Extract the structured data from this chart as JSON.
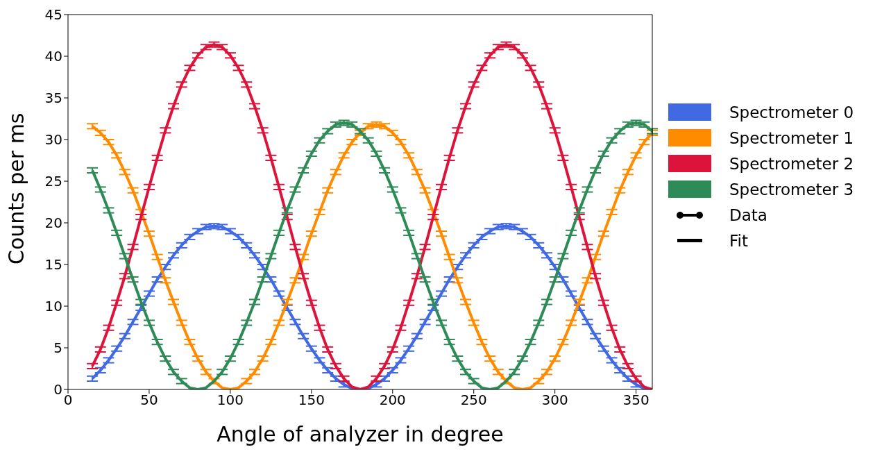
{
  "chart_data": {
    "type": "line",
    "xlabel": "Angle of analyzer in degree",
    "ylabel": "Counts per ms",
    "x": [
      15,
      20,
      25,
      30,
      35,
      40,
      45,
      50,
      55,
      60,
      65,
      70,
      75,
      80,
      85,
      90,
      95,
      100,
      105,
      110,
      115,
      120,
      125,
      130,
      135,
      140,
      145,
      150,
      155,
      160,
      165,
      170,
      175,
      180,
      185,
      190,
      195,
      200,
      205,
      210,
      215,
      220,
      225,
      230,
      235,
      240,
      245,
      250,
      255,
      260,
      265,
      270,
      275,
      280,
      285,
      290,
      295,
      300,
      305,
      310,
      315,
      320,
      325,
      330,
      335,
      340,
      345,
      350,
      355,
      360
    ],
    "series": [
      {
        "name": "Spectrometer 0",
        "color": "#4169e1",
        "values": [
          1.3,
          2.3,
          3.5,
          4.9,
          6.4,
          8.1,
          9.8,
          11.5,
          13.2,
          14.7,
          16.1,
          17.3,
          18.3,
          19.0,
          19.5,
          19.6,
          19.5,
          19.0,
          18.3,
          17.3,
          16.1,
          14.7,
          13.2,
          11.5,
          9.8,
          8.1,
          6.4,
          4.9,
          3.5,
          2.3,
          1.3,
          0.6,
          0.1,
          0,
          0.1,
          0.6,
          1.3,
          2.3,
          3.5,
          4.9,
          6.4,
          8.1,
          9.8,
          11.5,
          13.2,
          14.7,
          16.1,
          17.3,
          18.3,
          19.0,
          19.5,
          19.6,
          19.5,
          19.0,
          18.3,
          17.3,
          16.1,
          14.7,
          13.2,
          11.5,
          9.8,
          8.1,
          6.4,
          4.9,
          3.5,
          2.3,
          1.3,
          0.6,
          0.1,
          0
        ],
        "errors": [
          0.3,
          0.3,
          0.3,
          0.3,
          0.3,
          0.3,
          0.3,
          0.3,
          0.3,
          0.3,
          0.3,
          0.3,
          0.3,
          0.3,
          0.3,
          0.3,
          0.3,
          0.3,
          0.3,
          0.3,
          0.3,
          0.3,
          0.3,
          0.3,
          0.3,
          0.3,
          0.3,
          0.3,
          0.3,
          0.3,
          0.3,
          0.3,
          null,
          null,
          null,
          0.3,
          0.3,
          0.3,
          0.3,
          0.3,
          0.3,
          0.3,
          0.3,
          0.3,
          0.3,
          0.3,
          0.3,
          0.3,
          0.3,
          0.3,
          0.3,
          0.3,
          0.3,
          0.3,
          0.3,
          0.3,
          0.3,
          0.3,
          0.3,
          0.3,
          0.3,
          0.3,
          0.3,
          0.3,
          0.3,
          0.3,
          0.3,
          0.3,
          null,
          null
        ]
      },
      {
        "name": "Spectrometer 1",
        "color": "#ff8c00",
        "values": [
          31.6,
          30.8,
          29.7,
          28.1,
          26.1,
          23.9,
          21.3,
          18.7,
          15.9,
          13.1,
          10.5,
          8.0,
          5.7,
          3.7,
          2.1,
          1.0,
          0.2,
          0,
          0.2,
          1.0,
          2.1,
          3.7,
          5.7,
          8.0,
          10.5,
          13.1,
          15.9,
          18.7,
          21.3,
          23.9,
          26.1,
          28.1,
          29.7,
          30.8,
          31.6,
          31.8,
          31.6,
          30.8,
          29.7,
          28.1,
          26.1,
          23.9,
          21.3,
          18.7,
          15.9,
          13.1,
          10.5,
          8.0,
          5.7,
          3.7,
          2.1,
          1.0,
          0.2,
          0,
          0.2,
          1.0,
          2.1,
          3.7,
          5.7,
          8.0,
          10.5,
          13.1,
          15.9,
          18.7,
          21.3,
          23.9,
          26.1,
          28.1,
          29.7,
          30.8
        ],
        "errors": [
          0.3,
          0.3,
          0.3,
          0.3,
          0.3,
          0.3,
          0.3,
          0.3,
          0.3,
          0.3,
          0.3,
          0.3,
          0.3,
          0.3,
          0.3,
          0.3,
          null,
          null,
          null,
          0.3,
          0.3,
          0.3,
          0.3,
          0.3,
          0.3,
          0.3,
          0.3,
          0.3,
          0.3,
          0.3,
          0.3,
          0.3,
          0.3,
          0.3,
          0.3,
          0.3,
          0.3,
          0.3,
          0.3,
          0.3,
          0.3,
          0.3,
          0.3,
          0.3,
          0.3,
          0.3,
          0.3,
          0.3,
          0.3,
          0.3,
          0.3,
          0.3,
          null,
          null,
          null,
          0.3,
          0.3,
          0.3,
          0.3,
          0.3,
          0.3,
          0.3,
          0.3,
          0.3,
          0.3,
          0.3,
          0.3,
          0.3,
          0.3,
          0.3
        ]
      },
      {
        "name": "Spectrometer 2",
        "color": "#dc143c",
        "values": [
          2.8,
          4.8,
          7.4,
          10.4,
          13.6,
          17.1,
          20.7,
          24.3,
          27.8,
          31.1,
          34.0,
          36.6,
          38.6,
          40.1,
          41.1,
          41.4,
          41.1,
          40.1,
          38.6,
          36.6,
          34.0,
          31.1,
          27.8,
          24.3,
          20.7,
          17.1,
          13.6,
          10.4,
          7.4,
          4.8,
          2.8,
          1.3,
          0.3,
          0,
          0.3,
          1.3,
          2.8,
          4.8,
          7.4,
          10.4,
          13.6,
          17.1,
          20.7,
          24.3,
          27.8,
          31.1,
          34.0,
          36.6,
          38.6,
          40.1,
          41.1,
          41.4,
          41.1,
          40.1,
          38.6,
          36.6,
          34.0,
          31.1,
          27.8,
          24.3,
          20.7,
          17.1,
          13.6,
          10.4,
          7.4,
          4.8,
          2.8,
          1.3,
          0.3,
          0
        ],
        "errors": [
          0.3,
          0.3,
          0.3,
          0.3,
          0.3,
          0.3,
          0.3,
          0.3,
          0.3,
          0.3,
          0.3,
          0.3,
          0.3,
          0.3,
          0.3,
          0.3,
          0.3,
          0.3,
          0.3,
          0.3,
          0.3,
          0.3,
          0.3,
          0.3,
          0.3,
          0.3,
          0.3,
          0.3,
          0.3,
          0.3,
          0.3,
          0.3,
          null,
          null,
          null,
          0.3,
          0.3,
          0.3,
          0.3,
          0.3,
          0.3,
          0.3,
          0.3,
          0.3,
          0.3,
          0.3,
          0.3,
          0.3,
          0.3,
          0.3,
          0.3,
          0.3,
          0.3,
          0.3,
          0.3,
          0.3,
          0.3,
          0.3,
          0.3,
          0.3,
          0.3,
          0.3,
          0.3,
          0.3,
          0.3,
          0.3,
          0.3,
          0.3,
          null,
          null
        ]
      },
      {
        "name": "Spectrometer 3",
        "color": "#2e8b57",
        "values": [
          26.3,
          24.0,
          21.5,
          18.8,
          16.0,
          13.2,
          10.5,
          8.0,
          5.7,
          3.7,
          2.1,
          1.0,
          0.2,
          0,
          0.2,
          1.0,
          2.1,
          3.7,
          5.7,
          8.0,
          10.5,
          13.2,
          16.0,
          18.8,
          21.5,
          24.0,
          26.3,
          28.3,
          29.9,
          31.0,
          31.8,
          32.0,
          31.8,
          31.0,
          29.9,
          28.3,
          26.3,
          24.0,
          21.5,
          18.8,
          16.0,
          13.2,
          10.5,
          8.0,
          5.7,
          3.7,
          2.1,
          1.0,
          0.2,
          0,
          0.2,
          1.0,
          2.1,
          3.7,
          5.7,
          8.0,
          10.5,
          13.2,
          16.0,
          18.8,
          21.5,
          24.0,
          26.3,
          28.3,
          29.9,
          31.0,
          31.8,
          32.0,
          31.8,
          31.0
        ],
        "errors": [
          0.3,
          0.3,
          0.3,
          0.3,
          0.3,
          0.3,
          0.3,
          0.3,
          0.3,
          0.3,
          0.3,
          0.3,
          null,
          null,
          null,
          null,
          0.3,
          0.3,
          0.3,
          0.3,
          0.3,
          0.3,
          0.3,
          0.3,
          0.3,
          0.3,
          0.3,
          0.3,
          0.3,
          0.3,
          0.3,
          0.3,
          0.3,
          0.3,
          0.3,
          0.3,
          0.3,
          0.3,
          0.3,
          0.3,
          0.3,
          0.3,
          0.3,
          0.3,
          0.3,
          0.3,
          0.3,
          0.3,
          null,
          null,
          null,
          null,
          0.3,
          0.3,
          0.3,
          0.3,
          0.3,
          0.3,
          0.3,
          0.3,
          0.3,
          0.3,
          0.3,
          0.3,
          0.3,
          0.3,
          0.3,
          0.3,
          0.3,
          0.3
        ]
      }
    ],
    "annotations": [
      "Data",
      "Fit"
    ],
    "xlim": [
      0,
      360
    ],
    "xticks": [
      0,
      50,
      100,
      150,
      200,
      250,
      300,
      350
    ],
    "ylim": [
      0,
      45
    ],
    "yticks": [
      0,
      5,
      10,
      15,
      20,
      25,
      30,
      35,
      40,
      45
    ],
    "grid": false,
    "legend": "right",
    "marker": "none",
    "line_style": "solid"
  }
}
